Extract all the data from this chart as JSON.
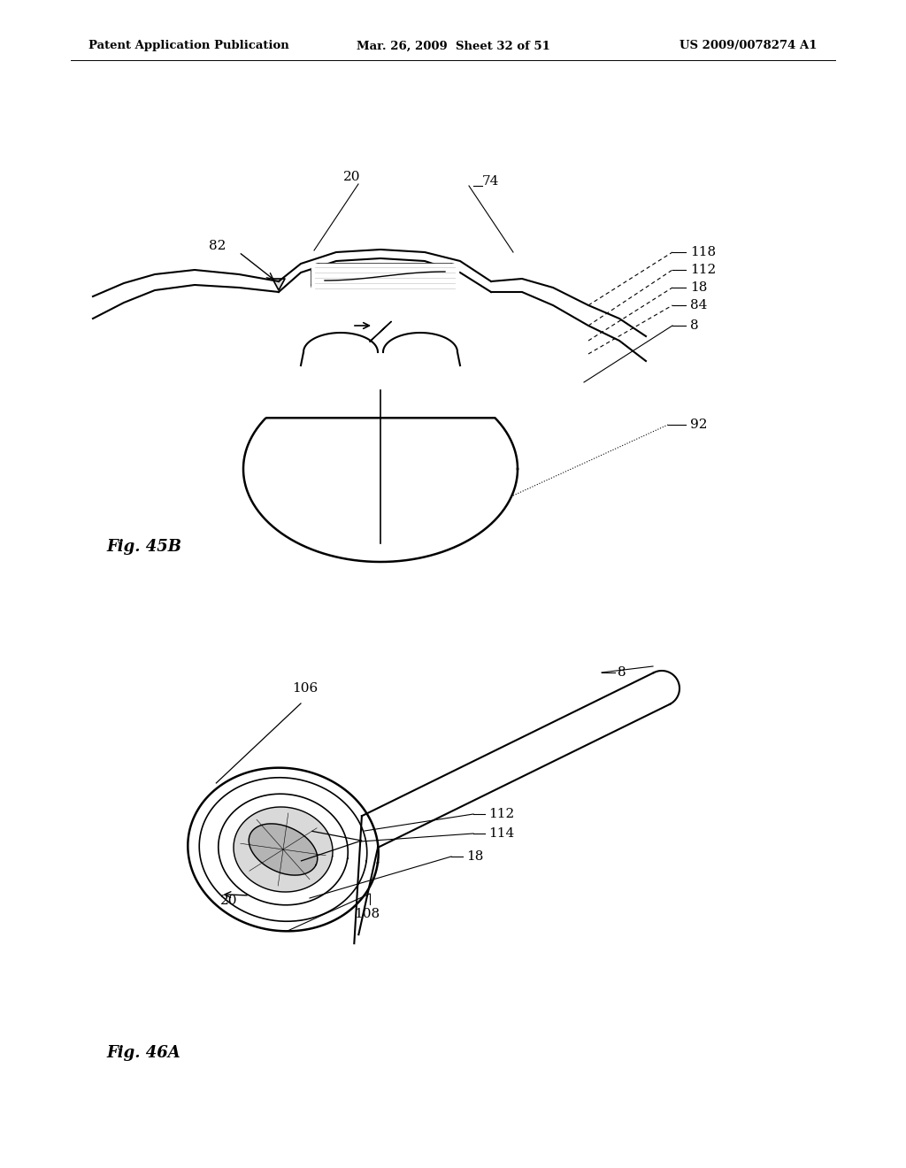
{
  "background_color": "#ffffff",
  "header_left": "Patent Application Publication",
  "header_mid": "Mar. 26, 2009  Sheet 32 of 51",
  "header_right": "US 2009/0078274 A1",
  "fig1_label": "Fig. 45B",
  "fig2_label": "Fig. 46A"
}
